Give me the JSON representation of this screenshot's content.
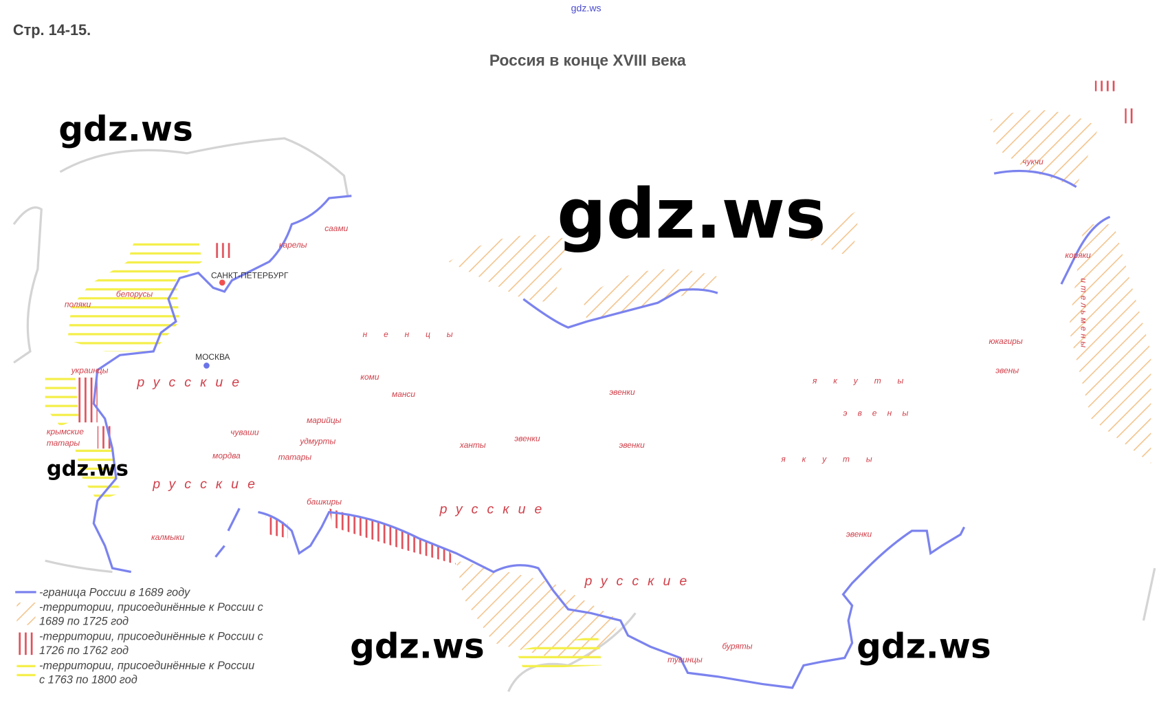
{
  "header": {
    "watermark_top": "gdz.ws",
    "page_ref": "Стр. 14-15.",
    "title": "Россия в конце XVIII века"
  },
  "watermarks": [
    "gdz.ws",
    "gdz.ws",
    "gdz.ws",
    "gdz.ws",
    "gdz.ws"
  ],
  "cities": {
    "spb": "САНКТ-ПЕТЕРБУРГ",
    "moscow": "МОСКВА"
  },
  "peoples": {
    "saami": "саами",
    "karely": "карелы",
    "belorusy": "белорусы",
    "polyaki": "поляки",
    "ukraintsy": "украинцы",
    "russkie1": "русские",
    "krymskie": "крымские",
    "tatary1": "татары",
    "russkie2": "русские",
    "chuvashi": "чуваши",
    "mariytsy": "марийцы",
    "udmurty": "удмурты",
    "mordva": "мордва",
    "tatary2": "татары",
    "komi": "коми",
    "mansi": "манси",
    "nentsy": "ненцы",
    "khanty": "ханты",
    "evenki1": "эвенки",
    "evenki2": "эвенки",
    "evenki3": "эвенки",
    "bashkiry": "башкиры",
    "kalmyki": "калмыки",
    "russkie3": "русские",
    "russkie4": "русские",
    "yakuty1": "якуты",
    "eveny1": "эвены",
    "yakuty2": "якуты",
    "evenki4": "эвенки",
    "buryaty": "буряты",
    "tuvintsy": "тувинцы",
    "chukchi": "чукчи",
    "koryaki": "коряки",
    "yukagiry": "юкагиры",
    "eveny2": "эвены",
    "itelmeny": "ительмены"
  },
  "legend": {
    "border": "-граница России в 1689 году",
    "t1689_l1": "-территории, присоединённые к России с",
    "t1689_l2": "1689 по 1725 год",
    "t1726_l1": "-территории, присоединённые к России с",
    "t1726_l2": "1726 по 1762 год",
    "t1763_l1": "-территории, присоединённые к России",
    "t1763_l2": "с 1763 по 1800 год"
  },
  "colors": {
    "border": "#7b83ee",
    "hatch_1689": "#f3c48e",
    "hatch_1726": "#e0505a",
    "hatch_1763": "#f4ef4a",
    "outline": "#d4d4d4",
    "labels": "#d0404a"
  }
}
